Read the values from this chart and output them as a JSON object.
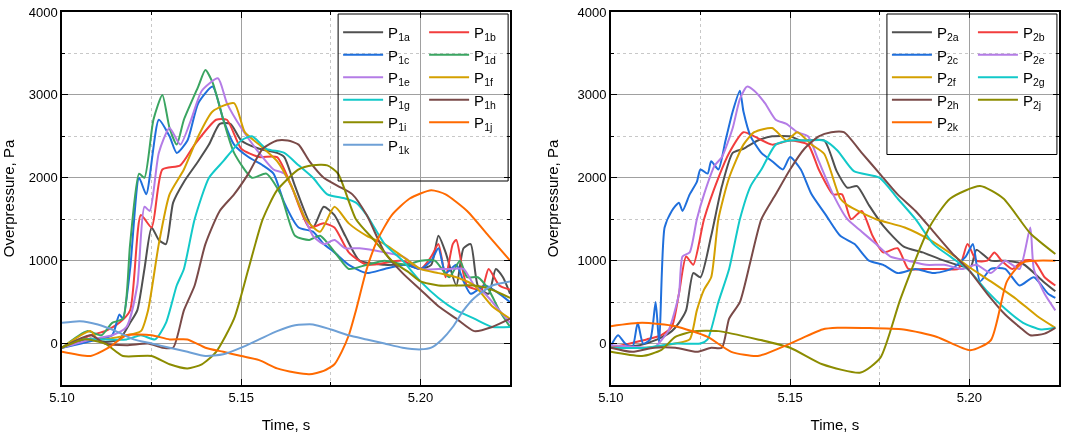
{
  "chart_data": [
    {
      "type": "line",
      "xlabel": "Time, s",
      "ylabel": "Overpressure, Pa",
      "xlim": [
        5.1,
        5.225
      ],
      "ylim": [
        -500,
        4000
      ],
      "xticks": [
        {
          "value": 5.1,
          "label": "5.10"
        },
        {
          "value": 5.125,
          "label": null
        },
        {
          "value": 5.15,
          "label": "5.15"
        },
        {
          "value": 5.175,
          "label": null
        },
        {
          "value": 5.2,
          "label": "5.20"
        },
        {
          "value": 5.225,
          "label": null
        }
      ],
      "yticks": [
        0,
        {
          "value": 500,
          "label": null
        },
        1000,
        {
          "value": 1500,
          "label": null
        },
        2000,
        {
          "value": 2500,
          "label": null
        },
        3000,
        {
          "value": 3500,
          "label": null
        },
        4000
      ],
      "grid": true,
      "legend": "top right",
      "series": [
        {
          "name": "P$_{1a}$",
          "color": "#505050",
          "x": [
            5.1,
            5.105,
            5.108,
            5.112,
            5.116,
            5.119,
            5.121,
            5.123,
            5.125,
            5.127,
            5.129,
            5.131,
            5.134,
            5.138,
            5.141,
            5.144,
            5.147,
            5.15,
            5.155,
            5.16,
            5.162,
            5.165,
            5.17,
            5.173,
            5.176,
            5.179,
            5.183,
            5.19,
            5.196,
            5.2,
            5.203,
            5.205,
            5.207,
            5.21,
            5.212,
            5.214,
            5.216,
            5.219,
            5.221,
            5.223,
            5.225
          ],
          "values": [
            -50,
            20,
            60,
            20,
            50,
            250,
            400,
            900,
            1400,
            1250,
            1200,
            1700,
            1950,
            2200,
            2400,
            2650,
            2650,
            2450,
            2350,
            2300,
            2250,
            1900,
            1400,
            1650,
            1550,
            1300,
            1000,
            950,
            950,
            900,
            950,
            1300,
            1100,
            700,
            1150,
            1200,
            700,
            600,
            900,
            800,
            600
          ]
        },
        {
          "name": "P$_{1b}$",
          "color": "#f23d3d",
          "x": [
            5.1,
            5.108,
            5.112,
            5.116,
            5.119,
            5.122,
            5.125,
            5.128,
            5.133,
            5.137,
            5.143,
            5.146,
            5.15,
            5.155,
            5.16,
            5.164,
            5.169,
            5.173,
            5.176,
            5.18,
            5.185,
            5.195,
            5.2,
            5.203,
            5.205,
            5.207,
            5.209,
            5.21,
            5.213,
            5.217,
            5.219,
            5.222,
            5.225
          ],
          "values": [
            -50,
            100,
            150,
            250,
            400,
            1550,
            1400,
            2100,
            2150,
            2400,
            2700,
            2700,
            2350,
            2250,
            2250,
            1900,
            1400,
            1450,
            1400,
            1100,
            950,
            1000,
            900,
            1050,
            1200,
            800,
            1200,
            1250,
            700,
            650,
            900,
            700,
            650
          ]
        },
        {
          "name": "P$_{1c}$",
          "color": "#1f6fdc",
          "x": [
            5.1,
            5.11,
            5.114,
            5.116,
            5.117,
            5.119,
            5.1215,
            5.1235,
            5.127,
            5.13,
            5.132,
            5.135,
            5.138,
            5.142,
            5.145,
            5.148,
            5.152,
            5.156,
            5.159,
            5.162,
            5.166,
            5.17,
            5.173,
            5.176,
            5.18,
            5.185,
            5.19,
            5.196,
            5.2,
            5.203,
            5.205,
            5.207,
            5.21,
            5.212,
            5.214,
            5.218,
            5.222,
            5.225
          ],
          "values": [
            -50,
            50,
            100,
            350,
            300,
            900,
            2000,
            1800,
            2700,
            2500,
            2300,
            2450,
            2900,
            3100,
            2700,
            2400,
            2250,
            2150,
            2050,
            1700,
            1400,
            1350,
            1200,
            1100,
            950,
            850,
            900,
            950,
            900,
            1000,
            1150,
            850,
            950,
            750,
            600,
            700,
            600,
            500
          ]
        },
        {
          "name": "P$_{1d}$",
          "color": "#3aa561",
          "x": [
            5.1,
            5.107,
            5.111,
            5.114,
            5.117,
            5.119,
            5.1215,
            5.123,
            5.1255,
            5.128,
            5.13,
            5.132,
            5.134,
            5.138,
            5.14,
            5.142,
            5.145,
            5.148,
            5.153,
            5.157,
            5.161,
            5.165,
            5.169,
            5.172,
            5.177,
            5.18,
            5.185,
            5.19,
            5.196,
            5.2,
            5.204,
            5.208,
            5.211,
            5.213,
            5.216,
            5.219,
            5.222,
            5.225
          ],
          "values": [
            -50,
            150,
            100,
            250,
            300,
            1200,
            2050,
            2000,
            2700,
            3000,
            2600,
            2400,
            2700,
            3100,
            3300,
            3150,
            2700,
            2300,
            2000,
            2050,
            1800,
            1300,
            1250,
            1300,
            1050,
            900,
            950,
            1000,
            950,
            1000,
            1000,
            800,
            1000,
            800,
            800,
            650,
            400,
            200
          ]
        },
        {
          "name": "P$_{1e}$",
          "color": "#b47ce6",
          "x": [
            5.1,
            5.108,
            5.114,
            5.118,
            5.121,
            5.123,
            5.1245,
            5.127,
            5.13,
            5.133,
            5.136,
            5.139,
            5.1435,
            5.146,
            5.15,
            5.155,
            5.159,
            5.162,
            5.166,
            5.17,
            5.173,
            5.176,
            5.179,
            5.183,
            5.19,
            5.195,
            5.2,
            5.205,
            5.208,
            5.212,
            5.215,
            5.218,
            5.222,
            5.225
          ],
          "values": [
            -50,
            50,
            100,
            200,
            700,
            1650,
            1600,
            2300,
            2600,
            2400,
            2700,
            3050,
            3200,
            2900,
            2600,
            2300,
            2100,
            2050,
            1700,
            1300,
            1200,
            1250,
            1150,
            1150,
            1100,
            1050,
            900,
            900,
            900,
            900,
            700,
            600,
            400,
            250
          ]
        },
        {
          "name": "P$_{1f}$",
          "color": "#d4a000",
          "x": [
            5.1,
            5.108,
            5.11,
            5.118,
            5.122,
            5.124,
            5.127,
            5.13,
            5.134,
            5.138,
            5.142,
            5.148,
            5.151,
            5.155,
            5.16,
            5.164,
            5.168,
            5.172,
            5.176,
            5.18,
            5.185,
            5.19,
            5.195,
            5.2,
            5.205,
            5.21,
            5.215,
            5.22,
            5.225
          ],
          "values": [
            -50,
            150,
            50,
            100,
            150,
            400,
            1200,
            1800,
            2100,
            2500,
            2800,
            2900,
            2550,
            2400,
            2200,
            1900,
            1500,
            1350,
            1650,
            1450,
            1300,
            1200,
            1050,
            900,
            850,
            800,
            700,
            450,
            300
          ]
        },
        {
          "name": "P$_{1g}$",
          "color": "#12c9c9",
          "x": [
            5.1,
            5.105,
            5.11,
            5.118,
            5.122,
            5.126,
            5.129,
            5.132,
            5.134,
            5.137,
            5.141,
            5.145,
            5.15,
            5.153,
            5.157,
            5.162,
            5.166,
            5.17,
            5.174,
            5.179,
            5.182,
            5.185,
            5.19,
            5.195,
            5.2,
            5.205,
            5.21,
            5.215,
            5.22,
            5.225
          ],
          "values": [
            -50,
            50,
            50,
            50,
            100,
            50,
            250,
            700,
            900,
            1500,
            2000,
            2200,
            2450,
            2500,
            2350,
            2300,
            2150,
            2000,
            1800,
            1750,
            1700,
            1550,
            1200,
            1000,
            750,
            550,
            400,
            300,
            200,
            200
          ]
        },
        {
          "name": "P$_{1h}$",
          "color": "#7a4a48",
          "x": [
            5.1,
            5.108,
            5.112,
            5.118,
            5.124,
            5.128,
            5.131,
            5.134,
            5.137,
            5.14,
            5.144,
            5.148,
            5.152,
            5.156,
            5.16,
            5.163,
            5.166,
            5.169,
            5.173,
            5.177,
            5.181,
            5.185,
            5.19,
            5.195,
            5.2,
            5.205,
            5.21,
            5.215,
            5.22,
            5.225
          ],
          "values": [
            -50,
            100,
            0,
            -20,
            0,
            -50,
            -50,
            400,
            700,
            1200,
            1600,
            1800,
            2050,
            2350,
            2450,
            2450,
            2400,
            2200,
            2000,
            1900,
            1800,
            1550,
            1100,
            850,
            650,
            450,
            300,
            150,
            200,
            300
          ]
        },
        {
          "name": "P$_{1i}$",
          "color": "#8c8c00",
          "x": [
            5.1,
            5.106,
            5.112,
            5.117,
            5.125,
            5.13,
            5.135,
            5.139,
            5.143,
            5.148,
            5.152,
            5.156,
            5.16,
            5.166,
            5.17,
            5.174,
            5.177,
            5.182,
            5.187,
            5.192,
            5.197,
            5.2,
            5.205,
            5.21,
            5.215,
            5.22,
            5.225
          ],
          "values": [
            -50,
            50,
            0,
            -150,
            -150,
            -250,
            -300,
            -250,
            -100,
            300,
            900,
            1500,
            1850,
            2100,
            2150,
            2150,
            2050,
            1500,
            1250,
            1000,
            850,
            750,
            700,
            700,
            700,
            650,
            550
          ]
        },
        {
          "name": "P$_{1j}$",
          "color": "#ff6a00",
          "x": [
            5.1,
            5.108,
            5.113,
            5.118,
            5.125,
            5.13,
            5.135,
            5.14,
            5.145,
            5.15,
            5.155,
            5.16,
            5.165,
            5.169,
            5.173,
            5.176,
            5.178,
            5.18,
            5.182,
            5.185,
            5.188,
            5.192,
            5.197,
            5.203,
            5.207,
            5.213,
            5.219,
            5.225
          ],
          "values": [
            -100,
            -150,
            -50,
            100,
            100,
            50,
            50,
            -50,
            -100,
            -150,
            -200,
            -300,
            -350,
            -370,
            -330,
            -250,
            -100,
            100,
            400,
            900,
            1250,
            1550,
            1750,
            1850,
            1800,
            1600,
            1300,
            1000
          ]
        },
        {
          "name": "P$_{1k}$",
          "color": "#6ea0d6",
          "x": [
            5.1,
            5.105,
            5.11,
            5.115,
            5.12,
            5.125,
            5.13,
            5.135,
            5.14,
            5.145,
            5.15,
            5.155,
            5.16,
            5.165,
            5.17,
            5.175,
            5.18,
            5.185,
            5.19,
            5.195,
            5.2,
            5.203,
            5.206,
            5.209,
            5.212,
            5.215,
            5.22,
            5.225
          ],
          "values": [
            250,
            270,
            230,
            150,
            50,
            0,
            -50,
            -100,
            -150,
            -130,
            -50,
            50,
            150,
            220,
            230,
            170,
            100,
            50,
            0,
            -50,
            -70,
            -50,
            50,
            200,
            400,
            550,
            700,
            750
          ]
        }
      ]
    },
    {
      "type": "line",
      "xlabel": "Time, s",
      "ylabel": "Overpressure, Pa",
      "xlim": [
        5.1,
        5.225
      ],
      "ylim": [
        -500,
        4000
      ],
      "xticks": [
        {
          "value": 5.1,
          "label": "5.10"
        },
        {
          "value": 5.125,
          "label": null
        },
        {
          "value": 5.15,
          "label": "5.15"
        },
        {
          "value": 5.175,
          "label": null
        },
        {
          "value": 5.2,
          "label": "5.20"
        },
        {
          "value": 5.225,
          "label": null
        }
      ],
      "yticks": [
        0,
        {
          "value": 500,
          "label": null
        },
        1000,
        {
          "value": 1500,
          "label": null
        },
        2000,
        {
          "value": 2500,
          "label": null
        },
        3000,
        {
          "value": 3500,
          "label": null
        },
        4000
      ],
      "grid": true,
      "legend": "top right",
      "series": [
        {
          "name": "P$_{2a}$",
          "color": "#505050",
          "x": [
            5.1,
            5.108,
            5.113,
            5.117,
            5.119,
            5.121,
            5.123,
            5.125,
            5.128,
            5.131,
            5.134,
            5.137,
            5.141,
            5.145,
            5.15,
            5.153,
            5.1595,
            5.163,
            5.166,
            5.1687,
            5.172,
            5.176,
            5.1817,
            5.187,
            5.193,
            5.2003,
            5.202,
            5.206,
            5.21,
            5.215,
            5.2206,
            5.224
          ],
          "values": [
            -50,
            -20,
            50,
            150,
            250,
            400,
            850,
            800,
            1300,
            1900,
            2300,
            2350,
            2450,
            2500,
            2500,
            2450,
            2450,
            2080,
            1880,
            1900,
            1670,
            1420,
            1170,
            1100,
            1000,
            920,
            1130,
            1000,
            1000,
            960,
            750,
            630
          ]
        },
        {
          "name": "P$_{2b}$",
          "color": "#f23d3d",
          "x": [
            5.1,
            5.11,
            5.114,
            5.117,
            5.119,
            5.121,
            5.123,
            5.126,
            5.13,
            5.133,
            5.137,
            5.14,
            5.145,
            5.15,
            5.155,
            5.158,
            5.162,
            5.1645,
            5.167,
            5.17,
            5.173,
            5.176,
            5.18,
            5.183,
            5.187,
            5.193,
            5.197,
            5.1995,
            5.202,
            5.205,
            5.207,
            5.209,
            5.212,
            5.215,
            5.218,
            5.221,
            5.224
          ],
          "values": [
            -50,
            50,
            100,
            200,
            600,
            1050,
            950,
            1500,
            2000,
            2300,
            2550,
            2500,
            2400,
            2450,
            2400,
            2100,
            1800,
            1800,
            1500,
            1600,
            1300,
            1100,
            1150,
            900,
            900,
            900,
            900,
            1200,
            1000,
            1000,
            1100,
            1000,
            900,
            1000,
            1000,
            800,
            700
          ]
        },
        {
          "name": "P$_{2c}$",
          "color": "#1f6fdc",
          "x": [
            5.1,
            5.102,
            5.104,
            5.106,
            5.1075,
            5.109,
            5.111,
            5.1125,
            5.1135,
            5.115,
            5.117,
            5.119,
            5.12,
            5.122,
            5.124,
            5.125,
            5.127,
            5.128,
            5.13,
            5.132,
            5.134,
            5.136,
            5.137,
            5.139,
            5.142,
            5.145,
            5.148,
            5.15,
            5.153,
            5.156,
            5.16,
            5.164,
            5.168,
            5.172,
            5.176,
            5.18,
            5.185,
            5.19,
            5.195,
            5.199,
            5.201,
            5.203,
            5.206,
            5.21,
            5.214,
            5.218,
            5.222,
            5.224
          ],
          "values": [
            -30,
            100,
            0,
            -50,
            250,
            0,
            50,
            500,
            0,
            1400,
            1600,
            1700,
            1600,
            1800,
            1950,
            2100,
            2050,
            2200,
            2100,
            2450,
            2800,
            3050,
            2800,
            2500,
            2300,
            2200,
            2100,
            2250,
            2100,
            1800,
            1550,
            1300,
            1200,
            1000,
            950,
            850,
            900,
            850,
            900,
            1050,
            1200,
            750,
            900,
            900,
            700,
            800,
            600,
            550
          ]
        },
        {
          "name": "P$_{2e}$",
          "color": "#b47ce6",
          "x": [
            5.1,
            5.11,
            5.112,
            5.116,
            5.119,
            5.12,
            5.122,
            5.124,
            5.126,
            5.129,
            5.131,
            5.134,
            5.136,
            5.138,
            5.14,
            5.143,
            5.146,
            5.149,
            5.152,
            5.155,
            5.158,
            5.162,
            5.166,
            5.17,
            5.174,
            5.178,
            5.183,
            5.188,
            5.193,
            5.198,
            5.202,
            5.206,
            5.21,
            5.214,
            5.217,
            5.218,
            5.221,
            5.224
          ],
          "values": [
            -20,
            -50,
            -50,
            150,
            600,
            1050,
            1100,
            1500,
            1800,
            2150,
            2250,
            2600,
            2950,
            3100,
            3050,
            2900,
            2700,
            2650,
            2550,
            2500,
            2200,
            1800,
            1500,
            1350,
            1200,
            1050,
            1000,
            950,
            950,
            900,
            950,
            850,
            1000,
            900,
            1400,
            900,
            600,
            400
          ]
        },
        {
          "name": "P$_{2f}$",
          "color": "#d4a000",
          "x": [
            5.1,
            5.11,
            5.118,
            5.122,
            5.124,
            5.126,
            5.128,
            5.13,
            5.133,
            5.137,
            5.14,
            5.145,
            5.149,
            5.152,
            5.156,
            5.1595,
            5.164,
            5.166,
            5.174,
            5.182,
            5.189,
            5.195,
            5.2,
            5.206,
            5.213,
            5.219,
            5.224
          ],
          "values": [
            -50,
            -50,
            0,
            50,
            400,
            650,
            800,
            1500,
            2000,
            2400,
            2550,
            2600,
            2450,
            2550,
            2400,
            2290,
            1750,
            1670,
            1500,
            1400,
            1250,
            1080,
            920,
            750,
            540,
            330,
            190
          ]
        },
        {
          "name": "P$_{2g}$",
          "color": "#12c9c9",
          "x": [
            5.1,
            5.11,
            5.118,
            5.125,
            5.127,
            5.13,
            5.133,
            5.136,
            5.139,
            5.142,
            5.146,
            5.15,
            5.155,
            5.1595,
            5.1632,
            5.1678,
            5.175,
            5.18,
            5.185,
            5.19,
            5.195,
            5.2,
            5.205,
            5.21,
            5.215,
            5.22,
            5.224
          ],
          "values": [
            -50,
            -50,
            0,
            0,
            50,
            500,
            900,
            1500,
            1900,
            2100,
            2400,
            2450,
            2450,
            2450,
            2330,
            2080,
            2000,
            1750,
            1500,
            1200,
            1040,
            880,
            630,
            420,
            250,
            170,
            190
          ]
        },
        {
          "name": "P$_{2h}$",
          "color": "#7a4a48",
          "x": [
            5.1,
            5.106,
            5.112,
            5.118,
            5.124,
            5.128,
            5.131,
            5.133,
            5.136,
            5.139,
            5.142,
            5.146,
            5.15,
            5.154,
            5.158,
            5.1615,
            5.165,
            5.17,
            5.175,
            5.18,
            5.185,
            5.19,
            5.195,
            5.2,
            5.205,
            5.21,
            5.214,
            5.217,
            5.221,
            5.224
          ],
          "values": [
            -50,
            -100,
            -50,
            -50,
            -100,
            -50,
            -50,
            300,
            500,
            1000,
            1500,
            1800,
            2100,
            2350,
            2500,
            2550,
            2550,
            2300,
            2050,
            1800,
            1600,
            1350,
            1100,
            880,
            600,
            350,
            200,
            100,
            120,
            190
          ]
        },
        {
          "name": "P$_{2j}$",
          "color": "#8c8c00",
          "x": [
            5.1,
            5.1087,
            5.114,
            5.118,
            5.1235,
            5.13,
            5.141,
            5.15,
            5.159,
            5.1697,
            5.1752,
            5.1808,
            5.1891,
            5.1947,
            5.203,
            5.2095,
            5.217,
            5.224
          ],
          "values": [
            -100,
            -150,
            -80,
            80,
            150,
            150,
            50,
            -50,
            -250,
            -350,
            -170,
            540,
            1420,
            1750,
            1900,
            1750,
            1330,
            1080
          ]
        },
        {
          "name": "P$_{2k}$",
          "color": "#ff6a00",
          "x": [
            5.1,
            5.1087,
            5.118,
            5.127,
            5.1336,
            5.141,
            5.15,
            5.159,
            5.1632,
            5.1817,
            5.191,
            5.2003,
            5.206,
            5.2105,
            5.215,
            5.224
          ],
          "values": [
            210,
            250,
            210,
            80,
            -100,
            -150,
            0,
            170,
            190,
            170,
            80,
            -80,
            40,
            750,
            980,
            1000
          ]
        }
      ]
    }
  ]
}
